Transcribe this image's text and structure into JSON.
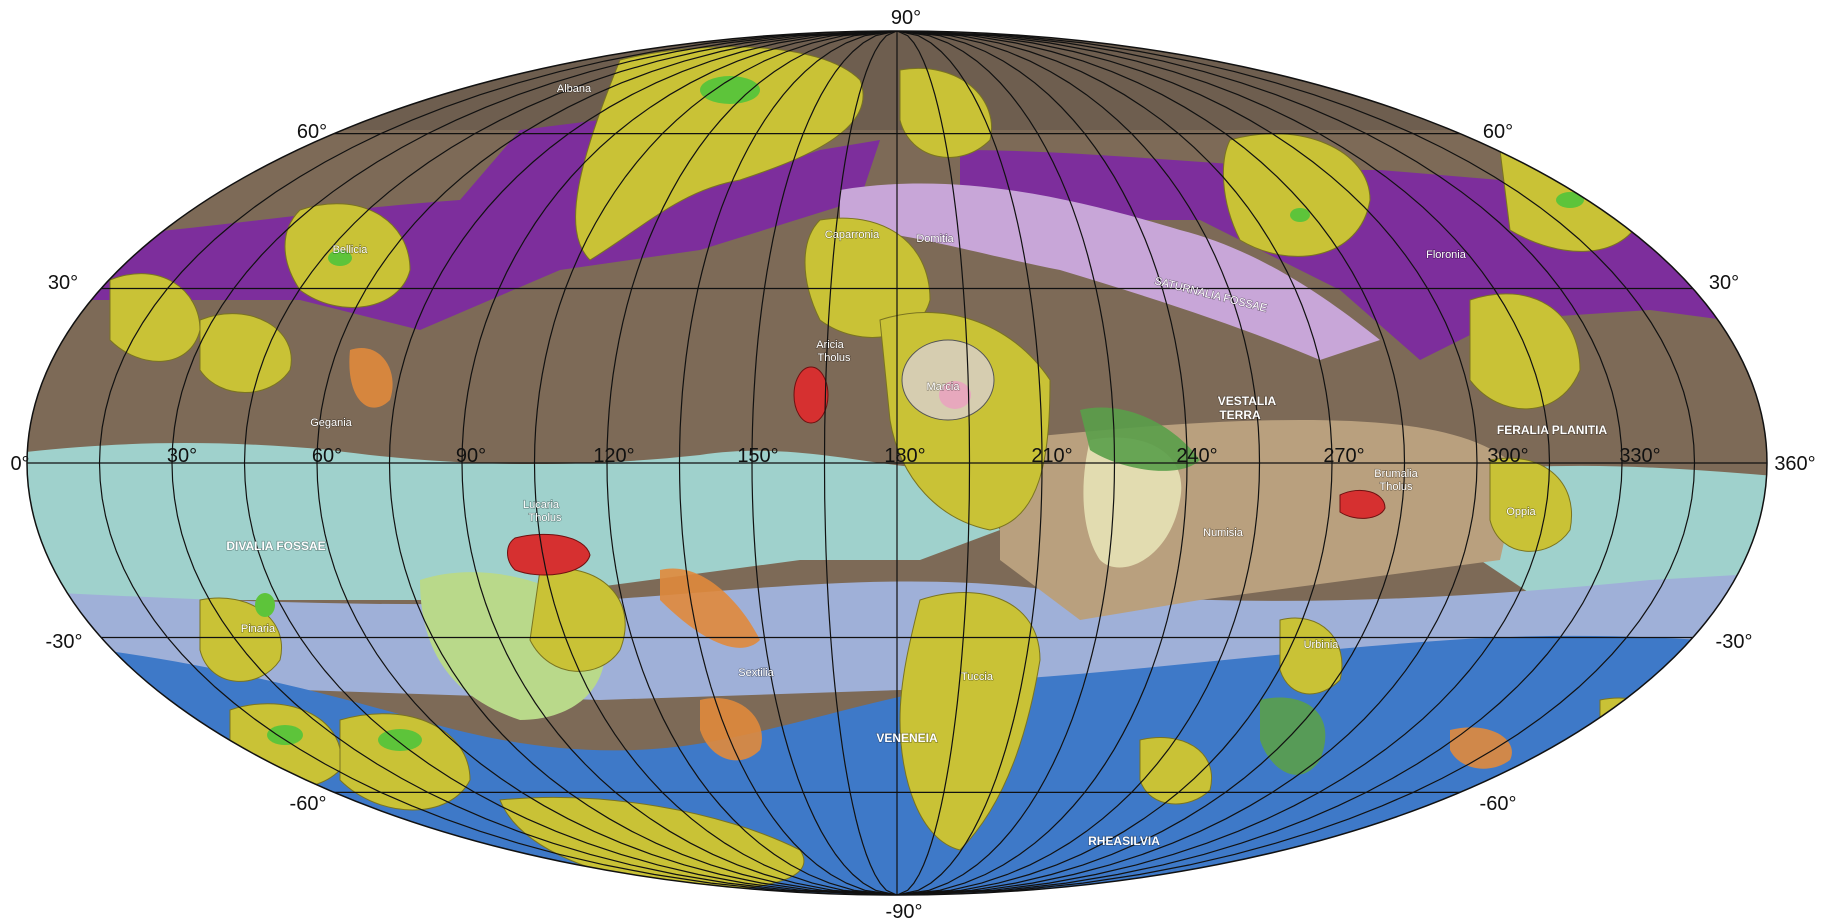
{
  "map": {
    "projection": "Mollweide",
    "colors": {
      "background": "#ffffff",
      "cratered_terrain": "#7d6a57",
      "cratered_terrain_dark": "#5f5146",
      "crater_material": "#c9c236",
      "crater_floor": "#5dc43a",
      "purple_unit": "#7d2e9c",
      "lavender_unit": "#c8a6d8",
      "equatorial_unit": "#9fd1cc",
      "grey_blue_unit": "#9fb0d8",
      "blue_unit": "#3e79c8",
      "pale_unit": "#e2dcb0",
      "green_unit": "#5a9e4a",
      "orange_unit": "#e08a3c",
      "red_unit": "#d63030",
      "light_green_unit": "#b9d98a",
      "tan_unit": "#b9a07e",
      "graticule": "#111111"
    },
    "latitude_labels": {
      "top": "90°",
      "bottom": "-90°",
      "left": [
        "60°",
        "30°",
        "0°",
        "-30°",
        "-60°"
      ],
      "right": [
        "60°",
        "30°",
        "360°",
        "-30°",
        "-60°"
      ]
    },
    "longitude_labels": [
      "30°",
      "60°",
      "90°",
      "120°",
      "150°",
      "180°",
      "210°",
      "240°",
      "270°",
      "300°",
      "330°"
    ],
    "features": [
      {
        "name": "Albana",
        "lon": 95,
        "lat": 72
      },
      {
        "name": "Bellicia",
        "lon": 51,
        "lat": 40
      },
      {
        "name": "Caparronia",
        "lon": 168,
        "lat": 38
      },
      {
        "name": "Domitia",
        "lon": 188,
        "lat": 38
      },
      {
        "name": "SATURNALIA FOSSAE",
        "lon": 242,
        "lat": 29
      },
      {
        "name": "Floronia",
        "lon": 306,
        "lat": 39
      },
      {
        "name": "Aricia",
        "lon": 160,
        "lat": 18
      },
      {
        "name": "Tholus",
        "lon": 160,
        "lat": 15
      },
      {
        "name": "Marcia",
        "lon": 190,
        "lat": 12
      },
      {
        "name": "VESTALIA",
        "lon": 252,
        "lat": 10
      },
      {
        "name": "TERRA",
        "lon": 252,
        "lat": 7
      },
      {
        "name": "Gegania",
        "lon": 60,
        "lat": 6
      },
      {
        "name": "FERALIA PLANITIA",
        "lon": 310,
        "lat": 5
      },
      {
        "name": "Lucaria",
        "lon": 103,
        "lat": -7
      },
      {
        "name": "Tholus",
        "lon": 103,
        "lat": -9
      },
      {
        "name": "Brumalia",
        "lon": 282,
        "lat": -2
      },
      {
        "name": "Tholus",
        "lon": 282,
        "lat": -4
      },
      {
        "name": "Numisia",
        "lon": 247,
        "lat": -10
      },
      {
        "name": "Oppia",
        "lon": 311,
        "lat": -7
      },
      {
        "name": "DIVALIA FOSSAE",
        "lon": 40,
        "lat": -13
      },
      {
        "name": "Pinaria",
        "lon": 38,
        "lat": -24
      },
      {
        "name": "Sextilia",
        "lon": 147,
        "lat": -37
      },
      {
        "name": "Tuccia",
        "lon": 194,
        "lat": -37
      },
      {
        "name": "Urbinia",
        "lon": 279,
        "lat": -32
      },
      {
        "name": "VENENEIA",
        "lon": 174,
        "lat": -48
      },
      {
        "name": "RHEASILVIA",
        "lon": 226,
        "lat": -67
      }
    ]
  }
}
